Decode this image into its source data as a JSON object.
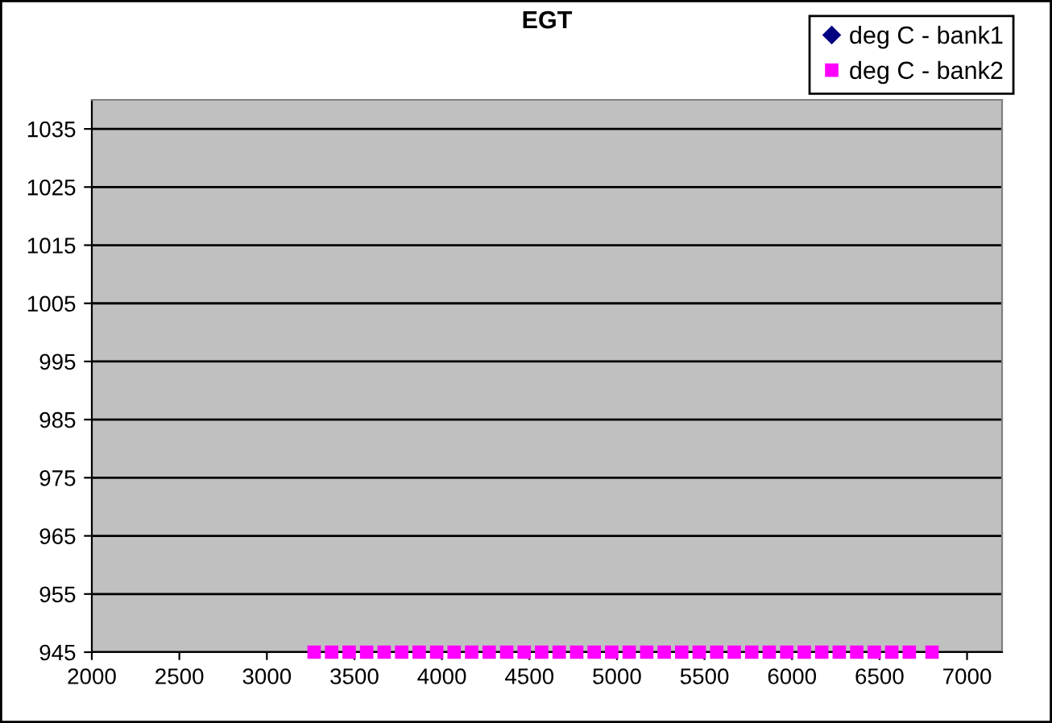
{
  "chart_data": {
    "type": "scatter",
    "title": "EGT",
    "xlim": [
      2000,
      7200
    ],
    "xticks": [
      2000,
      2500,
      3000,
      3500,
      4000,
      4500,
      5000,
      5500,
      6000,
      6500,
      7000
    ],
    "ylim": [
      945,
      1040
    ],
    "yticks": [
      945,
      955,
      965,
      975,
      985,
      995,
      1005,
      1015,
      1025,
      1035
    ],
    "grid": "y",
    "legend": "top right",
    "x": [
      3270,
      3370,
      3470,
      3570,
      3670,
      3770,
      3870,
      3970,
      4070,
      4170,
      4270,
      4370,
      4470,
      4570,
      4670,
      4770,
      4870,
      4970,
      5070,
      5170,
      5270,
      5370,
      5470,
      5570,
      5670,
      5770,
      5870,
      5970,
      6070,
      6170,
      6270,
      6370,
      6470,
      6570,
      6670,
      6800
    ],
    "series": [
      {
        "name": "deg C - bank1",
        "color": "#000080",
        "marker": "diamond",
        "values": [
          null,
          null,
          null,
          null,
          null,
          null,
          null,
          null,
          null,
          null,
          null,
          null,
          null,
          null,
          null,
          null,
          null,
          null,
          null,
          null,
          null,
          null,
          null,
          null,
          null,
          null,
          null,
          null,
          null,
          null,
          null,
          null,
          null,
          null,
          null,
          null
        ]
      },
      {
        "name": "deg C - bank2",
        "color": "#ff00ff",
        "marker": "square",
        "values": [
          945,
          945,
          945,
          945,
          945,
          945,
          945,
          945,
          945,
          945,
          945,
          945,
          945,
          945,
          945,
          945,
          945,
          945,
          945,
          945,
          945,
          945,
          945,
          945,
          945,
          945,
          945,
          945,
          945,
          945,
          945,
          945,
          945,
          945,
          945,
          945
        ]
      }
    ]
  }
}
